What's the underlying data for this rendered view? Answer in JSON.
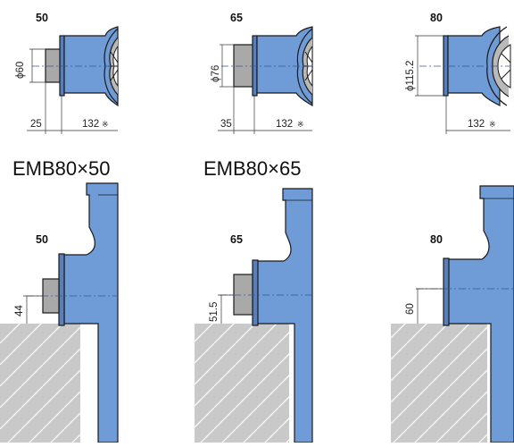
{
  "top_row": {
    "panels": [
      {
        "size": "50",
        "diameter": "ϕ60",
        "offset": "25",
        "length": "132",
        "mark": "※"
      },
      {
        "size": "65",
        "diameter": "ϕ76",
        "offset": "35",
        "length": "132",
        "mark": "※"
      },
      {
        "size": "80",
        "diameter": "ϕ115.2",
        "offset": "",
        "length": "132",
        "mark": "※"
      }
    ]
  },
  "section_titles": [
    "EMB80×50",
    "EMB80×65"
  ],
  "bottom_row": {
    "panels": [
      {
        "size": "50",
        "height": "44"
      },
      {
        "size": "65",
        "height": "51.5"
      },
      {
        "size": "80",
        "height": "60"
      }
    ]
  },
  "colors": {
    "pump_blue": "#6f9bd6",
    "outline": "#1a1a1a",
    "flange_gray": "#a9a9a9",
    "ground_gray": "#c9c9c9",
    "centerline": "#3a5a8a"
  }
}
